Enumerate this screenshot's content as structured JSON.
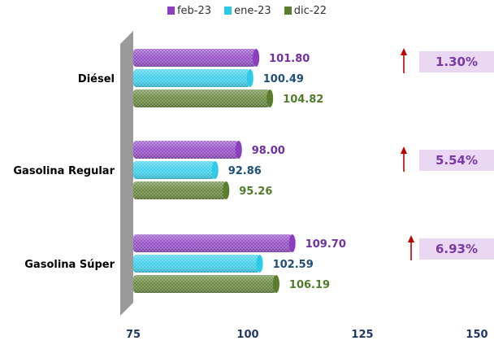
{
  "chart_data": {
    "type": "bar",
    "orientation": "horizontal",
    "categories": [
      "Diésel",
      "Gasolina Regular",
      "Gasolina Súper"
    ],
    "series": [
      {
        "name": "feb-23",
        "values": [
          101.8,
          98.0,
          109.7
        ],
        "color": "#8b3fc0",
        "label_color": "#7030a0"
      },
      {
        "name": "ene-23",
        "values": [
          100.49,
          92.86,
          102.59
        ],
        "color": "#2ecbe8",
        "label_color": "#1f4e79"
      },
      {
        "name": "dic-22",
        "values": [
          104.82,
          95.26,
          106.19
        ],
        "color": "#5b7d2e",
        "label_color": "#4f7b2a"
      }
    ],
    "value_labels": [
      [
        "101.80",
        "98.00",
        "109.70"
      ],
      [
        "100.49",
        "92.86",
        "102.59"
      ],
      [
        "104.82",
        "95.26",
        "106.19"
      ]
    ],
    "x_ticks": [
      "75",
      "100",
      "125",
      "150"
    ],
    "xlim": [
      75,
      150
    ],
    "legend_position": "top-center",
    "changes": [
      {
        "category": "Diésel",
        "direction": "up",
        "value": "1.30%"
      },
      {
        "category": "Gasolina Regular",
        "direction": "up",
        "value": "5.54%"
      },
      {
        "category": "Gasolina Súper",
        "direction": "up",
        "value": "6.93%"
      }
    ],
    "colors": {
      "arrow": "#c00000",
      "change_box": "#ead7f2",
      "change_text": "#7a3aa6",
      "wall": "#9a9a9a"
    }
  }
}
